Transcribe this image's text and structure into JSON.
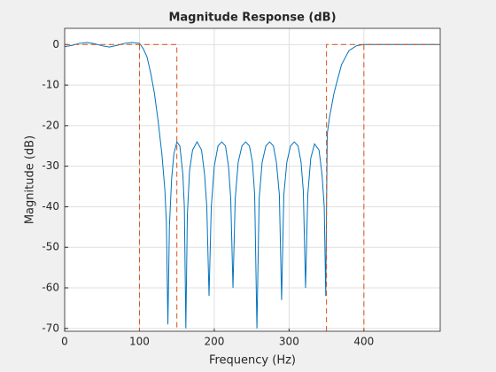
{
  "chart_data": {
    "type": "line",
    "title": "Magnitude Response (dB)",
    "xlabel": "Frequency (Hz)",
    "ylabel": "Magnitude (dB)",
    "xlim": [
      0,
      502
    ],
    "ylim": [
      -70.7,
      4
    ],
    "xticks": [
      0,
      100,
      200,
      300,
      400
    ],
    "yticks": [
      0,
      -10,
      -20,
      -30,
      -40,
      -50,
      -60,
      -70
    ],
    "grid": true,
    "series": [
      {
        "color": "#0072bd",
        "dash": false,
        "x": [
          0,
          10,
          20,
          30,
          40,
          50,
          60,
          70,
          80,
          90,
          100,
          105,
          110,
          115,
          120,
          125,
          130,
          134,
          136,
          138,
          140,
          143,
          146,
          150,
          154,
          158,
          160,
          162,
          164,
          167,
          171,
          177,
          183,
          187,
          190,
          193,
          196,
          200,
          205,
          210,
          215,
          219,
          222,
          225,
          228,
          232,
          237,
          242,
          247,
          251,
          254,
          257,
          260,
          264,
          269,
          274,
          279,
          283,
          287,
          290,
          293,
          297,
          302,
          307,
          312,
          316,
          319,
          322,
          325,
          329,
          334,
          340,
          344,
          347,
          349,
          351,
          354,
          360,
          370,
          380,
          390,
          400,
          410,
          450,
          500
        ],
        "values": [
          -0.5,
          -0.2,
          0.3,
          0.5,
          0.2,
          -0.3,
          -0.6,
          -0.2,
          0.3,
          0.5,
          0.3,
          -1,
          -3,
          -7,
          -12,
          -19,
          -27,
          -36,
          -44,
          -69,
          -45,
          -33,
          -27,
          -24,
          -25,
          -32,
          -40,
          -70,
          -42,
          -31,
          -26,
          -24,
          -26,
          -32,
          -40,
          -62,
          -40,
          -30,
          -25,
          -24,
          -25,
          -30,
          -38,
          -60,
          -38,
          -29,
          -25,
          -24,
          -25,
          -29,
          -37,
          -70,
          -38,
          -29,
          -25,
          -24,
          -25,
          -29,
          -37,
          -63,
          -37,
          -29,
          -25,
          -24,
          -25,
          -29,
          -36,
          -60,
          -37,
          -28,
          -24.5,
          -26,
          -32,
          -40,
          -62,
          -22,
          -18,
          -12,
          -5,
          -1.5,
          -0.3,
          0,
          0,
          0,
          0
        ]
      },
      {
        "color": "#d95319",
        "dash": true,
        "x": [
          0,
          150,
          150,
          null,
          100,
          100,
          null,
          350,
          350,
          502,
          null,
          400,
          400
        ],
        "values": [
          0,
          0,
          -70.7,
          null,
          0,
          -70.7,
          null,
          -70.7,
          0,
          0,
          null,
          0,
          -70.7
        ]
      }
    ]
  }
}
